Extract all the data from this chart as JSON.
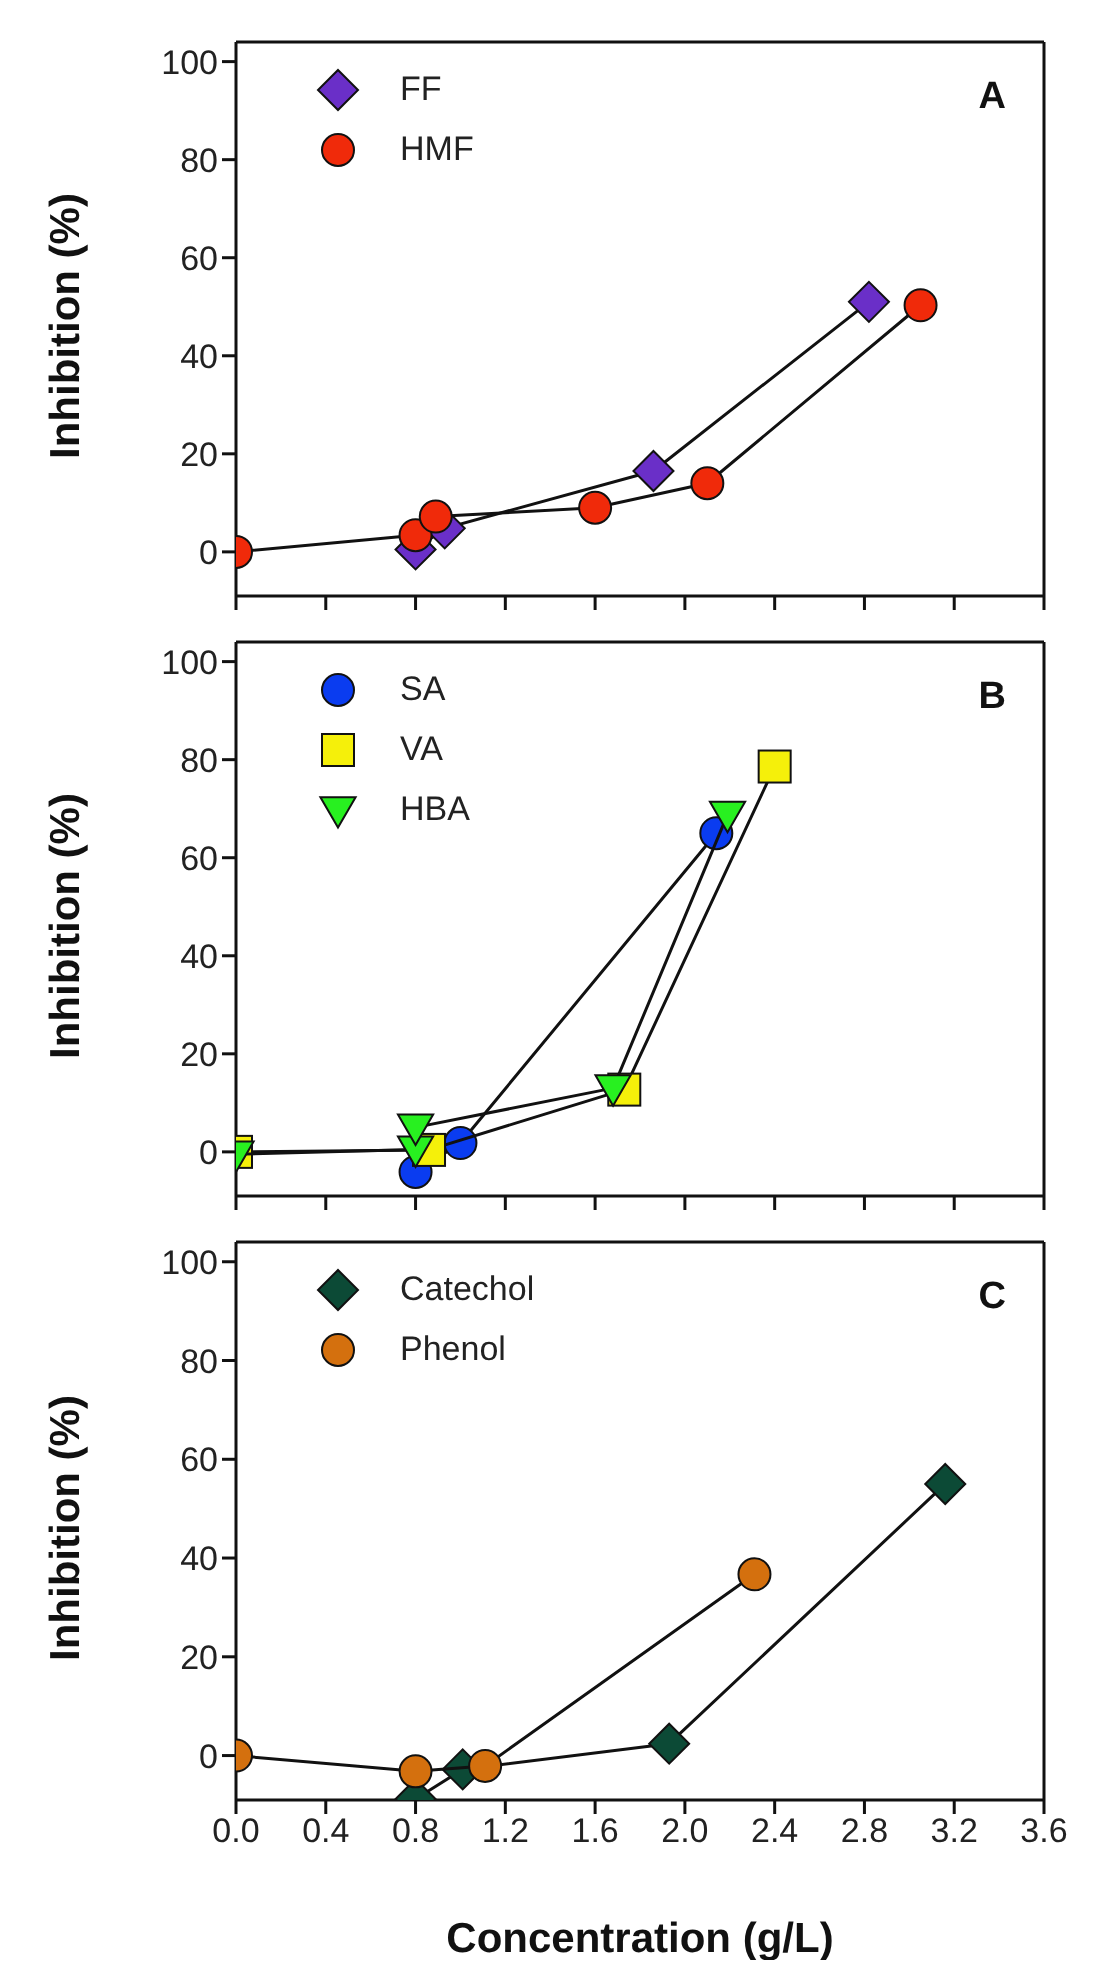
{
  "chart_data": [
    {
      "type": "line",
      "xlim": [
        0,
        3.6
      ],
      "xticks": [
        0,
        0.4,
        0.8,
        1.2,
        1.6,
        2,
        2.4,
        2.8,
        3.2,
        3.6
      ],
      "ylim": [
        -9,
        104
      ],
      "yticks": [
        0,
        20,
        40,
        60,
        80,
        100
      ],
      "ylabel": "Inhibition (%)",
      "tick_labels": "y",
      "legend": "top left",
      "annotations": [
        "A"
      ],
      "line_style": "solid",
      "series": [
        {
          "name": "FF",
          "color": "#6a2fc8",
          "marker": "diamond",
          "x": [
            0.8,
            0.93,
            1.86,
            2.82
          ],
          "values": [
            0.5,
            4.8,
            16.5,
            51
          ]
        },
        {
          "name": "HMF",
          "color": "#f02a0a",
          "marker": "circle",
          "x": [
            0,
            0.8,
            0.89,
            1.6,
            2.1,
            3.05
          ],
          "values": [
            0,
            3.4,
            7.2,
            9,
            14,
            50.3
          ]
        }
      ]
    },
    {
      "type": "line",
      "xlim": [
        0,
        3.6
      ],
      "xticks": [
        0,
        0.4,
        0.8,
        1.2,
        1.6,
        2,
        2.4,
        2.8,
        3.2,
        3.6
      ],
      "ylim": [
        -9,
        104
      ],
      "yticks": [
        0,
        20,
        40,
        60,
        80,
        100
      ],
      "ylabel": "Inhibition (%)",
      "tick_labels": "y",
      "legend": "top left",
      "annotations": [
        "B"
      ],
      "line_style": "solid",
      "series": [
        {
          "name": "SA",
          "color": "#0a3cf0",
          "marker": "circle",
          "x": [
            0.8,
            1.0,
            2.14
          ],
          "values": [
            -4.1,
            1.8,
            65
          ]
        },
        {
          "name": "VA",
          "color": "#f5f00a",
          "marker": "square",
          "x": [
            0,
            0.86,
            1.73,
            2.4
          ],
          "values": [
            0,
            0.4,
            12.7,
            78.6
          ]
        },
        {
          "name": "HBA",
          "color": "#28f020",
          "marker": "triangle",
          "x": [
            0,
            0.8,
            0.8,
            1.68,
            2.19
          ],
          "values": [
            -0.5,
            0.5,
            5,
            13,
            68.8
          ]
        }
      ]
    },
    {
      "type": "line",
      "xlim": [
        0,
        3.6
      ],
      "xticks": [
        {
          "value": 0,
          "label": "0.0"
        },
        {
          "value": 0.4,
          "label": "0.4"
        },
        {
          "value": 0.8,
          "label": "0.8"
        },
        {
          "value": 1.2,
          "label": "1.2"
        },
        {
          "value": 1.6,
          "label": "1.6"
        },
        {
          "value": 2,
          "label": "2.0"
        },
        {
          "value": 2.4,
          "label": "2.4"
        },
        {
          "value": 2.8,
          "label": "2.8"
        },
        {
          "value": 3.2,
          "label": "3.2"
        },
        {
          "value": 3.6,
          "label": "3.6"
        }
      ],
      "ylim": [
        -9,
        104
      ],
      "yticks": [
        0,
        20,
        40,
        60,
        80,
        100
      ],
      "xlabel": "Concentration (g/L)",
      "ylabel": "Inhibition (%)",
      "legend": "top left",
      "annotations": [
        "C"
      ],
      "line_style": "solid",
      "series": [
        {
          "name": "Catechol",
          "color": "#0c4a36",
          "marker": "diamond",
          "x": [
            0.8,
            1.01,
            1.93,
            3.16
          ],
          "values": [
            -8.8,
            -2.8,
            2.4,
            55
          ]
        },
        {
          "name": "Phenol",
          "color": "#d4700e",
          "marker": "circle",
          "x": [
            0,
            0.8,
            1.11,
            2.31
          ],
          "values": [
            0,
            -3.2,
            -2.1,
            36.7
          ]
        }
      ]
    }
  ]
}
